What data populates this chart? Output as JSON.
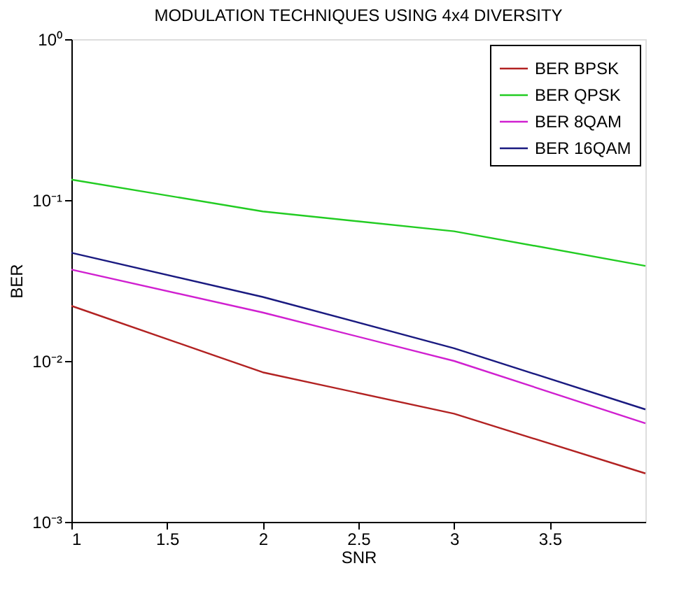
{
  "chart_data": {
    "type": "line",
    "title": "MODULATION TECHNIQUES USING 4x4 DIVERSITY",
    "xlabel": "SNR",
    "ylabel": "BER",
    "x": [
      1,
      2,
      3,
      4
    ],
    "series": [
      {
        "name": "BER BPSK",
        "color": "#b22222",
        "values": [
          0.022,
          0.0085,
          0.0047,
          0.002
        ]
      },
      {
        "name": "BER QPSK",
        "color": "#22cc22",
        "values": [
          0.134,
          0.085,
          0.064,
          0.039
        ]
      },
      {
        "name": "BER 8QAM",
        "color": "#d020d0",
        "values": [
          0.037,
          0.02,
          0.01,
          0.0041
        ]
      },
      {
        "name": "BER 16QAM",
        "color": "#1a1a80",
        "values": [
          0.047,
          0.025,
          0.012,
          0.005
        ]
      }
    ],
    "xlim": [
      1,
      4
    ],
    "xticks": [
      1,
      1.5,
      2,
      2.5,
      3,
      3.5
    ],
    "ylim": [
      0.001,
      1
    ],
    "yticks": [
      {
        "value": 0.001,
        "label": "10⁻³"
      },
      {
        "value": 0.01,
        "label": "10⁻²"
      },
      {
        "value": 0.1,
        "label": "10⁻¹"
      },
      {
        "value": 1,
        "label": "10⁰"
      }
    ],
    "log": "y",
    "grid": false,
    "legend": "top right",
    "marker": "none",
    "line_style": "solid"
  }
}
